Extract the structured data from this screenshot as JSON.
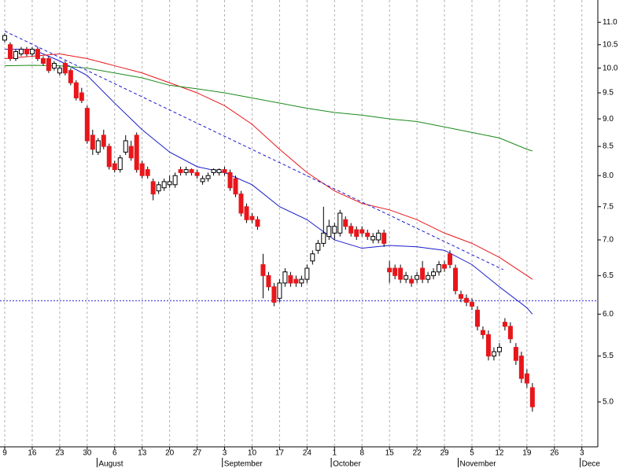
{
  "chart_data": {
    "type": "candlestick",
    "yscale": "log",
    "ylim": [
      4.555,
      11.52
    ],
    "xlim": [
      -0.86,
      107.9
    ],
    "yticks": [
      {
        "value": 11,
        "label": "11.0"
      },
      10.5,
      {
        "value": 10,
        "label": "10.0"
      },
      9.5,
      {
        "value": 9,
        "label": "9.0"
      },
      8.5,
      {
        "value": 8,
        "label": "8.0"
      },
      7.5,
      {
        "value": 7,
        "label": "7.0"
      },
      6.5,
      {
        "value": 6,
        "label": "6.0"
      },
      5.5,
      {
        "value": 5,
        "label": "5.0"
      }
    ],
    "xticks": [
      {
        "value": 0,
        "label": "9"
      },
      {
        "value": 5,
        "label": "16"
      },
      {
        "value": 10,
        "label": "23"
      },
      {
        "value": 15,
        "label": "30"
      },
      {
        "value": 20,
        "label": "6"
      },
      {
        "value": 25,
        "label": "13"
      },
      {
        "value": 30,
        "label": "20"
      },
      {
        "value": 35,
        "label": "27"
      },
      {
        "value": 40,
        "label": "3"
      },
      {
        "value": 45,
        "label": "10"
      },
      {
        "value": 50,
        "label": "17"
      },
      {
        "value": 55,
        "label": "24"
      },
      {
        "value": 60,
        "label": "1"
      },
      {
        "value": 65,
        "label": "8"
      },
      {
        "value": 70,
        "label": "15"
      },
      {
        "value": 75,
        "label": "22"
      },
      {
        "value": 80,
        "label": "29"
      },
      {
        "value": 85,
        "label": "5"
      },
      {
        "value": 90,
        "label": "12"
      },
      {
        "value": 95,
        "label": "19"
      },
      {
        "value": 100,
        "label": "26"
      },
      {
        "value": 105,
        "label": "3"
      }
    ],
    "month_ticks": [
      {
        "value": 16.8,
        "label": "August"
      },
      {
        "value": 39.6,
        "label": "September"
      },
      {
        "value": 59.4,
        "label": "October"
      },
      {
        "value": 82.5,
        "label": "November"
      },
      {
        "value": 104.7,
        "label": "Dece"
      }
    ],
    "grid": true,
    "up_color": "#ffffff",
    "down_color": "#e8161b",
    "open": [
      10.6,
      10.5,
      10.2,
      10.3,
      10.4,
      10.3,
      10.4,
      10.2,
      10.2,
      10.0,
      9.9,
      10.1,
      9.95,
      9.7,
      9.5,
      9.2,
      8.7,
      8.4,
      8.7,
      8.5,
      8.2,
      8.1,
      8.4,
      8.5,
      8.7,
      8.2,
      8.1,
      7.9,
      7.75,
      7.8,
      7.85,
      7.85,
      8.1,
      8.05,
      8.1,
      8.05,
      7.9,
      7.95,
      8.05,
      8.05,
      8.1,
      8.05,
      7.95,
      7.7,
      7.5,
      7.35,
      7.3,
      6.65,
      6.5,
      6.35,
      6.2,
      6.4,
      6.5,
      6.45,
      6.4,
      6.45,
      6.7,
      6.85,
      6.95,
      7.05,
      7.1,
      7.1,
      7.3,
      7.2,
      7.15,
      7.15,
      7.1,
      7.0,
      7.0,
      7.1,
      6.6,
      6.6,
      6.6,
      6.45,
      6.45,
      6.45,
      6.6,
      6.45,
      6.5,
      6.55,
      6.65,
      6.8,
      6.6,
      6.25,
      6.2,
      6.15,
      6.05,
      5.8,
      5.75,
      5.5,
      5.55,
      5.9,
      5.85,
      5.6,
      5.5,
      5.3,
      5.15
    ],
    "high": [
      10.75,
      10.55,
      10.4,
      10.45,
      10.45,
      10.45,
      10.45,
      10.25,
      10.25,
      10.15,
      10.05,
      10.15,
      10.0,
      9.75,
      9.6,
      9.25,
      8.8,
      8.65,
      8.8,
      8.55,
      8.25,
      8.35,
      8.7,
      8.6,
      8.75,
      8.25,
      8.15,
      7.95,
      7.9,
      7.95,
      8.0,
      8.05,
      8.15,
      8.15,
      8.12,
      8.1,
      8.0,
      8.05,
      8.12,
      8.12,
      8.15,
      8.1,
      8.0,
      7.75,
      7.55,
      7.4,
      7.35,
      6.8,
      6.55,
      6.4,
      6.45,
      6.6,
      6.55,
      6.5,
      6.5,
      6.65,
      6.85,
      7.0,
      7.5,
      7.3,
      7.25,
      7.45,
      7.35,
      7.25,
      7.2,
      7.2,
      7.15,
      7.1,
      7.15,
      7.15,
      6.7,
      6.65,
      6.65,
      6.55,
      6.5,
      6.55,
      6.7,
      6.55,
      6.6,
      6.7,
      6.7,
      6.85,
      6.65,
      6.3,
      6.25,
      6.2,
      6.1,
      5.85,
      5.8,
      5.6,
      5.65,
      5.95,
      5.9,
      5.65,
      5.55,
      5.35,
      5.2
    ],
    "low": [
      10.55,
      10.15,
      10.15,
      10.25,
      10.25,
      10.25,
      10.15,
      10.05,
      9.9,
      9.95,
      9.85,
      9.85,
      9.65,
      9.35,
      9.3,
      8.55,
      8.35,
      8.35,
      8.45,
      8.1,
      8.05,
      8.05,
      8.35,
      8.25,
      8.05,
      7.95,
      7.95,
      7.6,
      7.7,
      7.75,
      7.8,
      7.8,
      8.0,
      8.0,
      8.0,
      7.95,
      7.85,
      7.9,
      8.0,
      8.0,
      8.0,
      7.75,
      7.65,
      7.35,
      7.25,
      7.25,
      7.15,
      6.2,
      6.3,
      6.1,
      6.15,
      6.35,
      6.35,
      6.35,
      6.35,
      6.4,
      6.65,
      6.8,
      6.9,
      7.0,
      7.0,
      7.05,
      7.15,
      7.05,
      7.0,
      7.05,
      7.0,
      6.95,
      6.95,
      6.9,
      6.4,
      6.45,
      6.4,
      6.4,
      6.35,
      6.4,
      6.4,
      6.4,
      6.45,
      6.5,
      6.55,
      6.6,
      6.25,
      6.15,
      6.1,
      6.05,
      5.8,
      5.7,
      5.45,
      5.45,
      5.5,
      5.8,
      5.65,
      5.4,
      5.2,
      5.15,
      4.9
    ],
    "close": [
      10.7,
      10.2,
      10.35,
      10.4,
      10.3,
      10.4,
      10.2,
      10.1,
      9.95,
      10.1,
      10.0,
      9.9,
      9.7,
      9.4,
      9.35,
      8.6,
      8.45,
      8.6,
      8.5,
      8.15,
      8.1,
      8.3,
      8.6,
      8.3,
      8.1,
      8.0,
      8.0,
      7.7,
      7.85,
      7.9,
      7.9,
      8.0,
      8.05,
      8.1,
      8.05,
      8.0,
      7.95,
      8.0,
      8.1,
      8.1,
      8.05,
      7.8,
      7.7,
      7.4,
      7.3,
      7.3,
      7.2,
      6.5,
      6.35,
      6.15,
      6.4,
      6.55,
      6.4,
      6.4,
      6.45,
      6.6,
      6.8,
      6.95,
      7.1,
      7.2,
      7.2,
      7.4,
      7.2,
      7.1,
      7.05,
      7.1,
      7.05,
      7.05,
      7.1,
      6.95,
      6.55,
      6.5,
      6.45,
      6.5,
      6.4,
      6.5,
      6.45,
      6.5,
      6.55,
      6.65,
      6.6,
      6.65,
      6.3,
      6.2,
      6.15,
      6.1,
      5.85,
      5.75,
      5.5,
      5.55,
      5.6,
      5.85,
      5.7,
      5.45,
      5.25,
      5.2,
      4.95
    ],
    "lines": [
      {
        "color": "#1a1acc",
        "x": [
          0,
          5,
          10,
          15,
          20,
          25,
          30,
          35,
          40,
          45,
          50,
          55,
          60,
          65,
          70,
          75,
          80,
          85,
          90,
          95,
          96
        ],
        "values": [
          10.4,
          10.4,
          10.15,
          9.85,
          9.3,
          8.8,
          8.4,
          8.15,
          8.05,
          7.85,
          7.5,
          7.3,
          7.0,
          6.88,
          6.92,
          6.9,
          6.85,
          6.65,
          6.35,
          6.08,
          6.0
        ]
      },
      {
        "color": "#e8161b",
        "x": [
          0,
          5,
          10,
          15,
          20,
          25,
          30,
          35,
          40,
          45,
          50,
          55,
          60,
          65,
          70,
          75,
          80,
          85,
          90,
          95,
          96
        ],
        "values": [
          10.2,
          10.25,
          10.3,
          10.2,
          10.05,
          9.9,
          9.7,
          9.5,
          9.25,
          8.9,
          8.45,
          8.05,
          7.75,
          7.55,
          7.45,
          7.3,
          7.1,
          6.95,
          6.75,
          6.5,
          6.45
        ]
      },
      {
        "color": "#1a8a1a",
        "x": [
          0,
          5,
          10,
          15,
          20,
          25,
          30,
          35,
          40,
          45,
          50,
          55,
          60,
          65,
          70,
          75,
          80,
          85,
          90,
          95,
          96
        ],
        "values": [
          10.05,
          10.06,
          10.05,
          10.0,
          9.9,
          9.8,
          9.65,
          9.58,
          9.5,
          9.4,
          9.3,
          9.2,
          9.12,
          9.07,
          9.0,
          8.95,
          8.85,
          8.75,
          8.65,
          8.45,
          8.42
        ]
      }
    ],
    "trend_line": {
      "color": "#1a1acc",
      "x": [
        0,
        90.7
      ],
      "values": [
        10.8,
        6.58
      ]
    },
    "hline": {
      "color": "#1a1acc",
      "value": 6.17
    }
  }
}
